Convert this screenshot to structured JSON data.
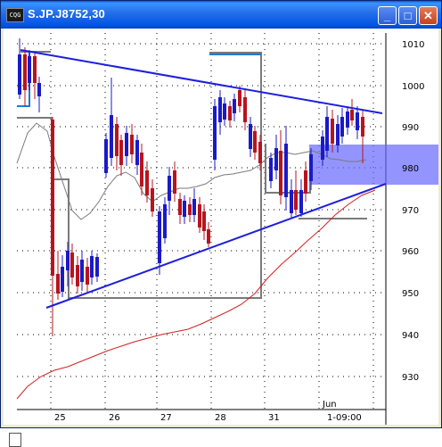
{
  "window": {
    "title": "S.JP.J8752,30",
    "app_icon_text": "CQG",
    "buttons": {
      "minimize": "_",
      "maximize": "□",
      "close": "✕"
    }
  },
  "chart": {
    "symbol": "S.JP.J8752",
    "interval_minutes": 30,
    "price_labels": [
      "1010",
      "1000",
      "990",
      "980",
      "970",
      "960",
      "950",
      "940",
      "930"
    ],
    "date_labels": [
      "25",
      "26",
      "27",
      "28",
      "31",
      "Jun",
      "1-09:00"
    ],
    "colors": {
      "up_candle": "#1a1ac8",
      "down_candle": "#b8141e",
      "trendline": "#1e1ee0",
      "moving_average_long": "#d42020",
      "moving_average_short": "#7a7a7a",
      "highlight_zone": "#6666ff",
      "stop_line": "#7a7a7a",
      "tick_highlight": "#1e7ad6"
    }
  }
}
